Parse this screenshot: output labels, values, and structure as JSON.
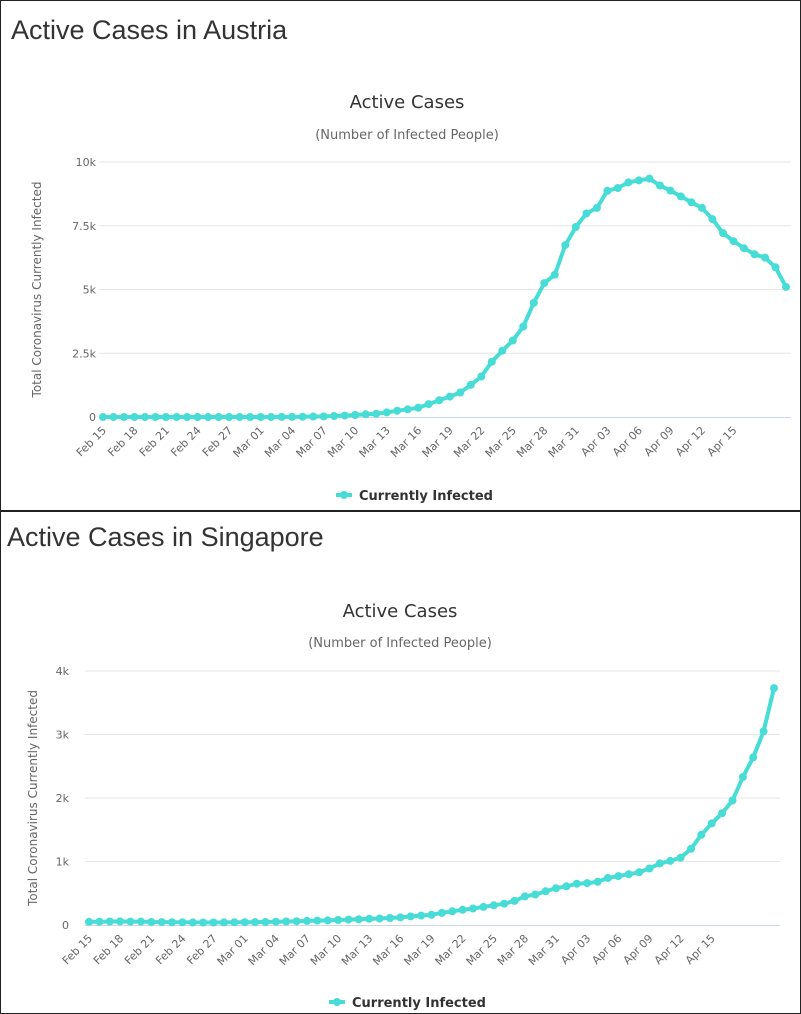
{
  "chart_data": [
    {
      "type": "line",
      "panel_title": "Active Cases in Austria",
      "title": "Active Cases",
      "subtitle": "(Number of Infected People)",
      "ylabel": "Total Coronavirus Currently Infected",
      "xlabel": "",
      "ylim": [
        0,
        10000
      ],
      "yticks": [
        0,
        2500,
        5000,
        7500,
        10000
      ],
      "ytick_labels": [
        "0",
        "2.5k",
        "5k",
        "7.5k",
        "10k"
      ],
      "xtick_labels": [
        "Feb 15",
        "Feb 18",
        "Feb 21",
        "Feb 24",
        "Feb 27",
        "Mar 01",
        "Mar 04",
        "Mar 07",
        "Mar 10",
        "Mar 13",
        "Mar 16",
        "Mar 19",
        "Mar 22",
        "Mar 25",
        "Mar 28",
        "Mar 31",
        "Apr 03",
        "Apr 06",
        "Apr 09",
        "Apr 12",
        "Apr 15"
      ],
      "color": "#48dcd6",
      "grid": true,
      "legend": "bottom-center",
      "series": [
        {
          "name": "Currently Infected",
          "values": [
            0,
            0,
            0,
            0,
            0,
            0,
            0,
            0,
            0,
            0,
            0,
            0,
            0,
            0,
            0,
            0,
            0,
            2,
            5,
            10,
            18,
            24,
            41,
            55,
            79,
            104,
            131,
            182,
            246,
            302,
            361,
            504,
            655,
            800,
            959,
            1260,
            1590,
            2170,
            2600,
            3000,
            3550,
            4480,
            5250,
            5580,
            6740,
            7450,
            7980,
            8200,
            8870,
            8980,
            9200,
            9280,
            9350,
            9080,
            8880,
            8650,
            8420,
            8200,
            7760,
            7210,
            6900,
            6620,
            6380,
            6250,
            5870,
            5100
          ]
        }
      ]
    },
    {
      "type": "line",
      "panel_title": "Active Cases in Singapore",
      "title": "Active Cases",
      "subtitle": "(Number of Infected People)",
      "ylabel": "Total Coronavirus Currently Infected",
      "xlabel": "",
      "ylim": [
        0,
        4000
      ],
      "yticks": [
        0,
        1000,
        2000,
        3000,
        4000
      ],
      "ytick_labels": [
        "0",
        "1k",
        "2k",
        "3k",
        "4k"
      ],
      "xtick_labels": [
        "Feb 15",
        "Feb 18",
        "Feb 21",
        "Feb 24",
        "Feb 27",
        "Mar 01",
        "Mar 04",
        "Mar 07",
        "Mar 10",
        "Mar 13",
        "Mar 16",
        "Mar 19",
        "Mar 22",
        "Mar 25",
        "Mar 28",
        "Mar 31",
        "Apr 03",
        "Apr 06",
        "Apr 09",
        "Apr 12",
        "Apr 15"
      ],
      "color": "#48dcd6",
      "grid": true,
      "legend": "bottom-center",
      "series": [
        {
          "name": "Currently Infected",
          "values": [
            50,
            52,
            55,
            56,
            54,
            53,
            48,
            45,
            43,
            42,
            41,
            40,
            40,
            41,
            42,
            44,
            45,
            47,
            52,
            55,
            60,
            65,
            70,
            73,
            78,
            85,
            90,
            97,
            103,
            110,
            120,
            135,
            148,
            160,
            190,
            215,
            240,
            260,
            285,
            310,
            335,
            380,
            450,
            480,
            530,
            580,
            610,
            650,
            660,
            680,
            740,
            770,
            800,
            830,
            890,
            970,
            1010,
            1060,
            1200,
            1420,
            1600,
            1760,
            1960,
            2330,
            2640,
            3050,
            3730
          ]
        }
      ]
    }
  ]
}
